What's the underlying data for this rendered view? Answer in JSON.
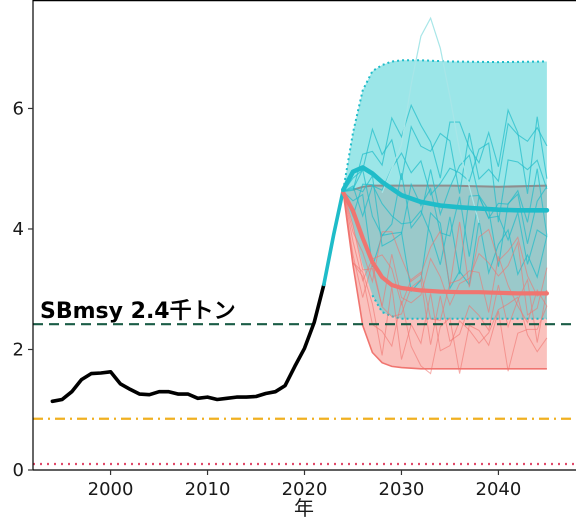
{
  "chart_data": {
    "type": "line",
    "title": "",
    "xlabel": "年",
    "ylabel": "",
    "xlim": [
      1992,
      2048
    ],
    "ylim": [
      0,
      7.8
    ],
    "x_ticks": [
      2000,
      2010,
      2020,
      2030,
      2040
    ],
    "y_ticks": [
      0,
      2,
      4,
      6
    ],
    "grid": false,
    "colors": {
      "historical": "#000000",
      "transition": "#1fbcc9",
      "scenario_high": "#1fbcc9",
      "scenario_high_band": "#7fdfe2",
      "scenario_low": "#f07570",
      "scenario_low_band": "#f9b6b1",
      "sbmsy_line": "#1a5c46",
      "lower_ref_line": "#f0b021",
      "limit_ref_line": "#e04a6a",
      "overlap_band": "#9a9a9a"
    },
    "reference_lines": [
      {
        "label": "SBmsy 2.4千トン",
        "y": 2.42,
        "color": "#1a5c46",
        "style": "dashed"
      },
      {
        "label": "",
        "y": 0.85,
        "color": "#f0b021",
        "style": "dashdot"
      },
      {
        "label": "",
        "y": 0.1,
        "color": "#e04a6a",
        "style": "dotted"
      }
    ],
    "series": [
      {
        "role": "historical",
        "x": [
          1994,
          1995,
          1996,
          1997,
          1998,
          1999,
          2000,
          2001,
          2002,
          2003,
          2004,
          2005,
          2006,
          2007,
          2008,
          2009,
          2010,
          2011,
          2012,
          2013,
          2014,
          2015,
          2016,
          2017,
          2018,
          2019,
          2020,
          2021,
          2022
        ],
        "values": [
          1.14,
          1.17,
          1.3,
          1.5,
          1.6,
          1.61,
          1.63,
          1.43,
          1.34,
          1.26,
          1.25,
          1.3,
          1.3,
          1.26,
          1.26,
          1.19,
          1.21,
          1.17,
          1.19,
          1.21,
          1.21,
          1.22,
          1.27,
          1.3,
          1.4,
          1.72,
          2.02,
          2.45,
          3.08
        ]
      },
      {
        "role": "transition",
        "x": [
          2022,
          2023,
          2024
        ],
        "values": [
          3.08,
          3.9,
          4.65
        ]
      },
      {
        "role": "scenario_high_median",
        "x": [
          2024,
          2025,
          2026,
          2027,
          2028,
          2030,
          2032,
          2034,
          2036,
          2038,
          2040,
          2042,
          2045
        ],
        "values": [
          4.65,
          4.95,
          5.02,
          4.92,
          4.78,
          4.56,
          4.45,
          4.39,
          4.36,
          4.34,
          4.32,
          4.31,
          4.31
        ]
      },
      {
        "role": "scenario_low_median",
        "x": [
          2024,
          2025,
          2026,
          2027,
          2028,
          2029,
          2030,
          2032,
          2034,
          2036,
          2038,
          2040,
          2042,
          2045
        ],
        "values": [
          4.6,
          4.3,
          3.85,
          3.45,
          3.2,
          3.07,
          3.02,
          2.98,
          2.96,
          2.95,
          2.95,
          2.94,
          2.93,
          2.93
        ]
      }
    ],
    "bands": [
      {
        "role": "scenario_high_band",
        "x": [
          2024,
          2025,
          2026,
          2027,
          2028,
          2029,
          2030,
          2032,
          2035,
          2040,
          2045
        ],
        "upper": [
          4.65,
          5.6,
          6.3,
          6.62,
          6.72,
          6.78,
          6.8,
          6.8,
          6.78,
          6.77,
          6.78
        ],
        "lower": [
          4.65,
          4.05,
          3.4,
          2.9,
          2.62,
          2.55,
          2.51,
          2.51,
          2.51,
          2.51,
          2.51
        ]
      },
      {
        "role": "scenario_low_band",
        "x": [
          2024,
          2025,
          2026,
          2027,
          2028,
          2029,
          2030,
          2032,
          2035,
          2040,
          2045
        ],
        "upper": [
          4.6,
          4.65,
          4.7,
          4.72,
          4.72,
          4.72,
          4.72,
          4.72,
          4.72,
          4.7,
          4.72
        ],
        "lower": [
          4.6,
          3.4,
          2.4,
          1.95,
          1.78,
          1.72,
          1.7,
          1.68,
          1.68,
          1.68,
          1.68
        ]
      }
    ]
  }
}
